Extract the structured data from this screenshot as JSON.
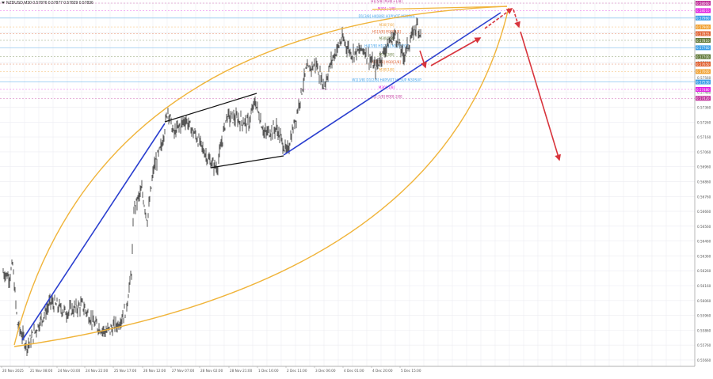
{
  "window": {
    "symbol_line": "NZDUSD,M30  0.57876 0.57877 0.57829 0.57836"
  },
  "colors": {
    "background": "#ffffff",
    "grid": "#ececf2",
    "candles": "#222222",
    "trend_blue": "#2b3fcf",
    "arc_orange": "#f0b43a",
    "projection_red": "#d8343c",
    "channel_black": "#111111"
  },
  "chart_data": {
    "type": "line",
    "title": "NZDUSD,M30",
    "ohlc_header": {
      "open": 0.57876,
      "high": 0.57877,
      "low": 0.57829,
      "close": 0.57836
    },
    "xlabel": "",
    "ylabel": "",
    "grid": true,
    "ylim": [
      0.5563,
      0.5808
    ],
    "y_ticks": [
      "0.58060",
      "0.57960",
      "0.57860",
      "0.57760",
      "0.57660",
      "0.57560",
      "0.57460",
      "0.57360",
      "0.57260",
      "0.57160",
      "0.57060",
      "0.56960",
      "0.56860",
      "0.56760",
      "0.56660",
      "0.56560",
      "0.56460",
      "0.56360",
      "0.56260",
      "0.56160",
      "0.56060",
      "0.55960",
      "0.55860",
      "0.55760",
      "0.55660"
    ],
    "x_ticks": [
      "20 Nov 2025",
      "21 Nov 08:00",
      "24 Nov 03:00",
      "24 Nov 22:00",
      "25 Nov 17:00",
      "26 Nov 12:00",
      "27 Nov 07:00",
      "28 Nov 02:00",
      "28 Nov 21:00",
      "1 Dec 16:00",
      "2 Dec 11:00",
      "3 Dec 06:00",
      "4 Dec 01:00",
      "4 Dec 20:00",
      "5 Dec 15:00"
    ],
    "series": [
      {
        "name": "NZDUSD close (approx)",
        "x": [
          "20 Nov 2025",
          "21 Nov 08:00",
          "24 Nov 03:00",
          "24 Nov 22:00",
          "25 Nov 17:00",
          "26 Nov 12:00",
          "27 Nov 07:00",
          "28 Nov 02:00",
          "28 Nov 21:00",
          "1 Dec 16:00",
          "2 Dec 11:00",
          "3 Dec 06:00",
          "4 Dec 01:00",
          "4 Dec 20:00",
          "5 Dec 15:00"
        ],
        "values": [
          0.5625,
          0.5587,
          0.56,
          0.5592,
          0.5622,
          0.57,
          0.572,
          0.5708,
          0.573,
          0.5725,
          0.5718,
          0.576,
          0.5775,
          0.5768,
          0.5784
        ]
      }
    ],
    "levels": [
      {
        "label": "H1[5/8] M30[+1/8]",
        "price": 0.5806,
        "color": "#c0309a"
      },
      {
        "label": "M30[+1/8]",
        "price": 0.5801,
        "color": "#e020e0"
      },
      {
        "label": "D1[3/8] H4[8/8] H1PIVOT M30RES",
        "price": 0.5796,
        "color": "#3a9ee8"
      },
      {
        "label": "M30[7/8]",
        "price": 0.579,
        "color": "#f0a030"
      },
      {
        "label": "H1[3/8] M30[6/8]",
        "price": 0.57855,
        "color": "#e06030"
      },
      {
        "label": "M30[5/8]",
        "price": 0.5781,
        "color": "#607838"
      },
      {
        "label": "H4[7/8] H1[2/8] M30PIVOT",
        "price": 0.5776,
        "color": "#3a9ee8"
      },
      {
        "label": "M30[3/8]",
        "price": 0.577,
        "color": "#607838"
      },
      {
        "label": "H1[1/8] M30[2/8]",
        "price": 0.5765,
        "color": "#e06030"
      },
      {
        "label": "M30[1/8]",
        "price": 0.576,
        "color": "#f0a030"
      },
      {
        "label": "W1[3/8] D1[2/8] H4PIVOT H1SUP M30SUP",
        "price": 0.5753,
        "color": "#3a9ee8"
      },
      {
        "label": "M30[-1/8]",
        "price": 0.5748,
        "color": "#e020e0"
      },
      {
        "label": "H1[-1/8] M30[-2/8]",
        "price": 0.5742,
        "color": "#c0309a"
      }
    ],
    "annotations": [
      "Blue ascending trendline from 20 Nov low to 26 Nov high",
      "Black broadening channel lines 26 Nov – 2 Dec",
      "Blue ascending trendline from 2 Dec low extending upward",
      "Orange curved arc boundaries",
      "Red projection arrows: short dip, rally to ~0.5806, then sharp drop toward ~0.5710"
    ]
  }
}
